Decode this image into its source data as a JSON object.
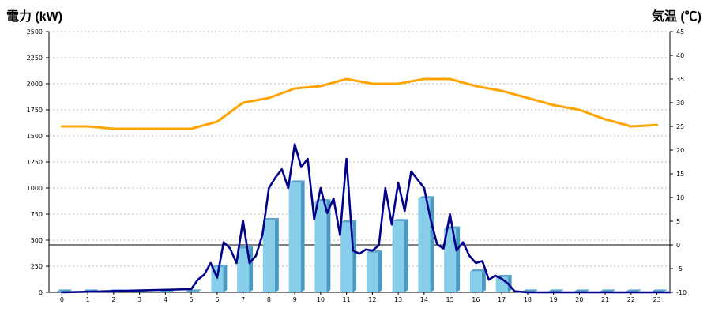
{
  "chart_data": {
    "type": "bar",
    "title": "",
    "left_axis": {
      "label": "電力 (kW)",
      "min": 0,
      "max": 2500,
      "ticks": [
        0,
        250,
        500,
        750,
        1000,
        1250,
        1500,
        1750,
        2000,
        2250,
        2500
      ]
    },
    "right_axis": {
      "label": "気温 (℃)",
      "min": -10,
      "max": 45,
      "ticks": [
        -10,
        -5,
        0,
        5,
        10,
        15,
        20,
        25,
        30,
        35,
        40,
        45
      ]
    },
    "categories": [
      "0",
      "1",
      "2",
      "3",
      "4",
      "5",
      "6",
      "7",
      "8",
      "9",
      "10",
      "11",
      "12",
      "13",
      "14",
      "15",
      "16",
      "17",
      "18",
      "19",
      "20",
      "21",
      "22",
      "23"
    ],
    "grid": true,
    "series": [
      {
        "kind": "bar",
        "axis": "left",
        "values": [
          5,
          5,
          5,
          5,
          5,
          5,
          240,
          420,
          690,
          1050,
          870,
          670,
          380,
          680,
          900,
          610,
          200,
          145,
          5,
          5,
          5,
          5,
          5,
          5
        ]
      },
      {
        "kind": "line",
        "axis": "right",
        "x": [
          0,
          1,
          2,
          3,
          4,
          5,
          6,
          7,
          8,
          9,
          10,
          11,
          12,
          13,
          14,
          15,
          16,
          17,
          18,
          19,
          20,
          21,
          22,
          23
        ],
        "values": [
          25,
          25,
          24.5,
          24.5,
          24.5,
          24.5,
          26,
          30,
          31,
          33,
          33.5,
          35,
          34,
          34,
          35,
          35,
          33.5,
          32.5,
          31,
          29.5,
          28.5,
          26.5,
          25,
          25.3
        ]
      },
      {
        "kind": "line",
        "axis": "left",
        "x": [
          0,
          5,
          5.25,
          5.5,
          5.75,
          6,
          6.25,
          6.5,
          6.75,
          7,
          7.25,
          7.5,
          7.75,
          8,
          8.25,
          8.5,
          8.75,
          9,
          9.25,
          9.5,
          9.75,
          10,
          10.25,
          10.5,
          10.75,
          11,
          11.25,
          11.5,
          11.75,
          12,
          12.25,
          12.5,
          12.75,
          13,
          13.25,
          13.5,
          13.75,
          14,
          14.25,
          14.5,
          14.75,
          15,
          15.25,
          15.5,
          15.75,
          16,
          16.25,
          16.5,
          16.75,
          17,
          17.25,
          17.5,
          18,
          23.5
        ],
        "values": [
          0,
          30,
          120,
          170,
          280,
          140,
          480,
          420,
          280,
          690,
          280,
          350,
          550,
          1000,
          1100,
          1180,
          1000,
          1420,
          1200,
          1280,
          700,
          1000,
          760,
          900,
          550,
          1280,
          400,
          370,
          410,
          400,
          450,
          1000,
          650,
          1050,
          780,
          1160,
          1080,
          1000,
          700,
          460,
          420,
          750,
          400,
          480,
          350,
          280,
          300,
          120,
          160,
          130,
          80,
          10,
          0,
          0
        ]
      }
    ],
    "reference_line": {
      "axis": "right",
      "value": 0
    },
    "colors": {
      "bar": "#87CEEB",
      "bar_side": "#4A9BC4",
      "bar_top": "#5FA5CC",
      "power_line": "#00008B",
      "temp_line": "#FFA500",
      "left_label": "#1E73BE",
      "right_label": "#F07E1E"
    }
  }
}
